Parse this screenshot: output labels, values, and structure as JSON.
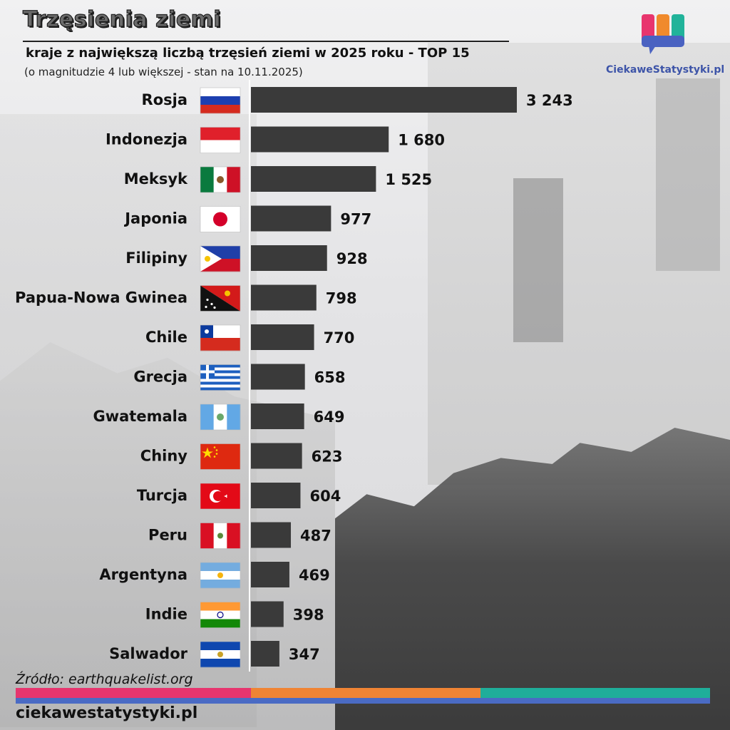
{
  "title": "Trzęsienia ziemi",
  "subtitle": "kraje z największą liczbą trzęsień ziemi w 2025 roku - TOP 15",
  "note": "(o magnitudzie 4 lub większej - stan na 10.11.2025)",
  "logo": {
    "text": "CiekaweStatystyki.pl",
    "colors": [
      "#e8356e",
      "#f08a2c",
      "#21b39a",
      "#4a62c1"
    ]
  },
  "source": "Źródło: earthquakelist.org",
  "footer": "ciekawestatystyki.pl",
  "stripe_colors": [
    "#e6356e",
    "#ef8434",
    "#1fae9a",
    "#4a6bc4"
  ],
  "chart_data": {
    "type": "bar",
    "orientation": "horizontal",
    "title": "Trzęsienia ziemi",
    "subtitle": "kraje z największą liczbą trzęsień ziemi w 2025 roku - TOP 15",
    "xlabel": "",
    "ylabel": "",
    "xlim": [
      0,
      3243
    ],
    "grid": false,
    "legend": "none",
    "bar_color": "#3a3a3a",
    "categories": [
      "Rosja",
      "Indonezja",
      "Meksyk",
      "Japonia",
      "Filipiny",
      "Papua-Nowa Gwinea",
      "Chile",
      "Grecja",
      "Gwatemala",
      "Chiny",
      "Turcja",
      "Peru",
      "Argentyna",
      "Indie",
      "Salwador"
    ],
    "values": [
      3243,
      1680,
      1525,
      977,
      928,
      798,
      770,
      658,
      649,
      623,
      604,
      487,
      469,
      398,
      347
    ],
    "data_labels": [
      "3 243",
      "1 680",
      "1 525",
      "977",
      "928",
      "798",
      "770",
      "658",
      "649",
      "623",
      "604",
      "487",
      "469",
      "398",
      "347"
    ],
    "flags": [
      "russia-flag",
      "indonesia-flag",
      "mexico-flag",
      "japan-flag",
      "philippines-flag",
      "papua-new-guinea-flag",
      "chile-flag",
      "greece-flag",
      "guatemala-flag",
      "china-flag",
      "turkey-flag",
      "peru-flag",
      "argentina-flag",
      "india-flag",
      "el-salvador-flag"
    ]
  }
}
